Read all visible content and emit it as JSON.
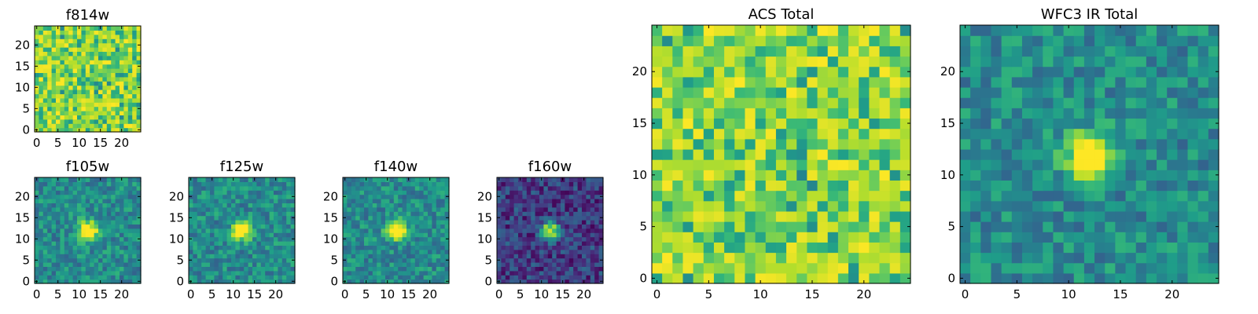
{
  "chart_data": [
    {
      "id": "f814w",
      "type": "heatmap",
      "title": "f814w",
      "pattern": "noise",
      "size": 25,
      "xlim": [
        0,
        24
      ],
      "ylim": [
        0,
        24
      ],
      "xticks": [
        "0",
        "5",
        "10",
        "15",
        "20"
      ],
      "yticks": [
        "0",
        "5",
        "10",
        "15",
        "20"
      ],
      "colormap": "viridis"
    },
    {
      "id": "f105w",
      "type": "heatmap",
      "title": "f105w",
      "pattern": "source",
      "size": 25,
      "xlim": [
        0,
        24
      ],
      "ylim": [
        0,
        24
      ],
      "xticks": [
        "0",
        "5",
        "10",
        "15",
        "20"
      ],
      "yticks": [
        "0",
        "5",
        "10",
        "15",
        "20"
      ],
      "colormap": "viridis"
    },
    {
      "id": "f125w",
      "type": "heatmap",
      "title": "f125w",
      "pattern": "source",
      "size": 25,
      "xlim": [
        0,
        24
      ],
      "ylim": [
        0,
        24
      ],
      "xticks": [
        "0",
        "5",
        "10",
        "15",
        "20"
      ],
      "yticks": [
        "0",
        "5",
        "10",
        "15",
        "20"
      ],
      "colormap": "viridis"
    },
    {
      "id": "f140w",
      "type": "heatmap",
      "title": "f140w",
      "pattern": "source",
      "size": 25,
      "xlim": [
        0,
        24
      ],
      "ylim": [
        0,
        24
      ],
      "xticks": [
        "0",
        "5",
        "10",
        "15",
        "20"
      ],
      "yticks": [
        "0",
        "5",
        "10",
        "15",
        "20"
      ],
      "colormap": "viridis"
    },
    {
      "id": "f160w",
      "type": "heatmap",
      "title": "f160w",
      "pattern": "source",
      "size": 25,
      "xlim": [
        0,
        24
      ],
      "ylim": [
        0,
        24
      ],
      "xticks": [
        "0",
        "5",
        "10",
        "15",
        "20"
      ],
      "yticks": [
        "0",
        "5",
        "10",
        "15",
        "20"
      ],
      "colormap": "viridis"
    },
    {
      "id": "acs-total",
      "type": "heatmap",
      "title": "ACS Total",
      "pattern": "noise",
      "size": 25,
      "xlim": [
        0,
        24
      ],
      "ylim": [
        0,
        24
      ],
      "xticks": [
        "0",
        "5",
        "10",
        "15",
        "20"
      ],
      "yticks": [
        "0",
        "5",
        "10",
        "15",
        "20"
      ],
      "colormap": "viridis"
    },
    {
      "id": "wfc3-ir-total",
      "type": "heatmap",
      "title": "WFC3 IR Total",
      "pattern": "source",
      "size": 25,
      "xlim": [
        0,
        24
      ],
      "ylim": [
        0,
        24
      ],
      "xticks": [
        "0",
        "5",
        "10",
        "15",
        "20"
      ],
      "yticks": [
        "0",
        "5",
        "10",
        "15",
        "20"
      ],
      "colormap": "viridis"
    }
  ]
}
